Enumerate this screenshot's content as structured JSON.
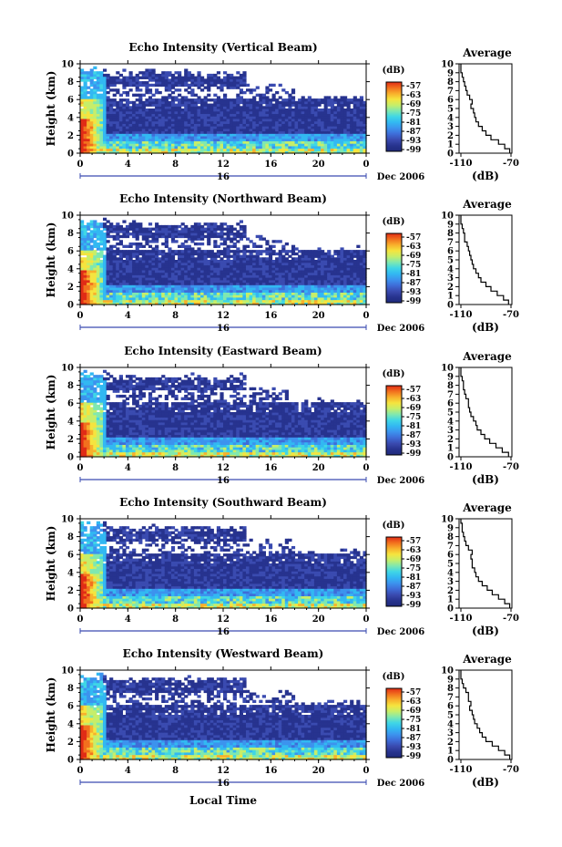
{
  "chart_data": [
    {
      "type": "heatmap",
      "title": "Echo Intensity (Vertical Beam)",
      "ylabel": "Height (km)",
      "xlim": [
        0,
        24
      ],
      "ylim": [
        0,
        10
      ],
      "x_ticks": [
        "0",
        "4",
        "8",
        "12",
        "16",
        "20",
        "0"
      ],
      "y_ticks": [
        "0",
        "2",
        "4",
        "6",
        "8",
        "10"
      ],
      "day_label": "16",
      "date_label": "Dec 2006",
      "colorbar": {
        "unit": "(dB)",
        "ticks": [
          "-57",
          "-63",
          "-69",
          "-75",
          "-81",
          "-87",
          "-93",
          "-99"
        ]
      },
      "average_profile": {
        "title": "Average",
        "xlabel": "(dB)",
        "x_ticks": [
          "-110",
          "-70"
        ],
        "xlim": [
          -112,
          -68
        ],
        "height_km": [
          0.0,
          0.5,
          1.0,
          1.5,
          2.0,
          2.5,
          3.0,
          3.5,
          4.0,
          4.5,
          5.0,
          5.5,
          6.0,
          6.5,
          7.0,
          7.5,
          8.0,
          8.5,
          9.0,
          9.5,
          10.0
        ],
        "intensity_db": [
          -71,
          -75,
          -80,
          -86,
          -90,
          -93,
          -96,
          -98,
          -99,
          -100,
          -102,
          -101,
          -103,
          -105,
          -106,
          -107,
          -108,
          -109,
          -110,
          -110,
          -110
        ]
      }
    },
    {
      "type": "heatmap",
      "title": "Echo Intensity (Northward Beam)",
      "ylabel": "Height (km)",
      "xlim": [
        0,
        24
      ],
      "ylim": [
        0,
        10
      ],
      "x_ticks": [
        "0",
        "4",
        "8",
        "12",
        "16",
        "20",
        "0"
      ],
      "y_ticks": [
        "0",
        "2",
        "4",
        "6",
        "8",
        "10"
      ],
      "day_label": "16",
      "date_label": "Dec 2006",
      "colorbar": {
        "unit": "(dB)",
        "ticks": [
          "-57",
          "-63",
          "-69",
          "-75",
          "-81",
          "-87",
          "-93",
          "-99"
        ]
      },
      "average_profile": {
        "title": "Average",
        "xlabel": "(dB)",
        "x_ticks": [
          "-110",
          "-70"
        ],
        "xlim": [
          -112,
          -68
        ],
        "height_km": [
          0.0,
          0.5,
          1.0,
          1.5,
          2.0,
          2.5,
          3.0,
          3.5,
          4.0,
          4.5,
          5.0,
          5.5,
          6.0,
          6.5,
          7.0,
          7.5,
          8.0,
          8.5,
          9.0,
          9.5,
          10.0
        ],
        "intensity_db": [
          -72,
          -76,
          -81,
          -86,
          -90,
          -94,
          -96,
          -98,
          -100,
          -101,
          -102,
          -103,
          -104,
          -105,
          -107,
          -107,
          -108,
          -109,
          -110,
          -110,
          -110
        ]
      }
    },
    {
      "type": "heatmap",
      "title": "Echo Intensity (Eastward Beam)",
      "ylabel": "Height (km)",
      "xlim": [
        0,
        24
      ],
      "ylim": [
        0,
        10
      ],
      "x_ticks": [
        "0",
        "4",
        "8",
        "12",
        "16",
        "20",
        "0"
      ],
      "y_ticks": [
        "0",
        "2",
        "4",
        "6",
        "8",
        "10"
      ],
      "day_label": "16",
      "date_label": "Dec 2006",
      "colorbar": {
        "unit": "(dB)",
        "ticks": [
          "-57",
          "-63",
          "-69",
          "-75",
          "-81",
          "-87",
          "-93",
          "-99"
        ]
      },
      "average_profile": {
        "title": "Average",
        "xlabel": "(dB)",
        "x_ticks": [
          "-110",
          "-70"
        ],
        "xlim": [
          -112,
          -68
        ],
        "height_km": [
          0.0,
          0.5,
          1.0,
          1.5,
          2.0,
          2.5,
          3.0,
          3.5,
          4.0,
          4.5,
          5.0,
          5.5,
          6.0,
          6.5,
          7.0,
          7.5,
          8.0,
          8.5,
          9.0,
          9.5,
          10.0
        ],
        "intensity_db": [
          -72,
          -77,
          -82,
          -87,
          -91,
          -94,
          -97,
          -98,
          -100,
          -102,
          -103,
          -104,
          -104,
          -106,
          -107,
          -108,
          -108,
          -109,
          -110,
          -110,
          -110
        ]
      }
    },
    {
      "type": "heatmap",
      "title": "Echo Intensity (Southward Beam)",
      "ylabel": "Height (km)",
      "xlim": [
        0,
        24
      ],
      "ylim": [
        0,
        10
      ],
      "x_ticks": [
        "0",
        "4",
        "8",
        "12",
        "16",
        "20",
        "0"
      ],
      "y_ticks": [
        "0",
        "2",
        "4",
        "6",
        "8",
        "10"
      ],
      "day_label": "16",
      "date_label": "Dec 2006",
      "colorbar": {
        "unit": "(dB)",
        "ticks": [
          "-57",
          "-63",
          "-69",
          "-75",
          "-81",
          "-87",
          "-93",
          "-99"
        ]
      },
      "average_profile": {
        "title": "Average",
        "xlabel": "(dB)",
        "x_ticks": [
          "-110",
          "-70"
        ],
        "xlim": [
          -112,
          -68
        ],
        "height_km": [
          0.0,
          0.5,
          1.0,
          1.5,
          2.0,
          2.5,
          3.0,
          3.5,
          4.0,
          4.5,
          5.0,
          5.5,
          6.0,
          6.5,
          7.0,
          7.5,
          8.0,
          8.5,
          9.0,
          9.5,
          10.0
        ],
        "intensity_db": [
          -71,
          -75,
          -80,
          -85,
          -89,
          -93,
          -96,
          -98,
          -99,
          -101,
          -101,
          -102,
          -101,
          -104,
          -106,
          -107,
          -108,
          -109,
          -109,
          -110,
          -110
        ]
      }
    },
    {
      "type": "heatmap",
      "title": "Echo Intensity (Westward Beam)",
      "ylabel": "Height (km)",
      "xlabel": "Local Time",
      "xlim": [
        0,
        24
      ],
      "ylim": [
        0,
        10
      ],
      "x_ticks": [
        "0",
        "4",
        "8",
        "12",
        "16",
        "20",
        "0"
      ],
      "y_ticks": [
        "0",
        "2",
        "4",
        "6",
        "8",
        "10"
      ],
      "day_label": "16",
      "date_label": "Dec 2006",
      "colorbar": {
        "unit": "(dB)",
        "ticks": [
          "-57",
          "-63",
          "-69",
          "-75",
          "-81",
          "-87",
          "-93",
          "-99"
        ]
      },
      "average_profile": {
        "title": "Average",
        "xlabel": "(dB)",
        "x_ticks": [
          "-110",
          "-70"
        ],
        "xlim": [
          -112,
          -68
        ],
        "height_km": [
          0.0,
          0.5,
          1.0,
          1.5,
          2.0,
          2.5,
          3.0,
          3.5,
          4.0,
          4.5,
          5.0,
          5.5,
          6.0,
          6.5,
          7.0,
          7.5,
          8.0,
          8.5,
          9.0,
          9.5,
          10.0
        ],
        "intensity_db": [
          -71,
          -75,
          -80,
          -85,
          -90,
          -93,
          -95,
          -97,
          -99,
          -100,
          -101,
          -103,
          -102,
          -104,
          -104,
          -106,
          -108,
          -109,
          -110,
          -110,
          -110
        ]
      }
    }
  ],
  "colorscale": [
    "#1f2a7a",
    "#27338f",
    "#3a4bb0",
    "#3e6dd8",
    "#3c93ee",
    "#32b8f2",
    "#3fd6e6",
    "#7fe8b0",
    "#c6ee6a",
    "#f5e43f",
    "#f8b02c",
    "#f2701e",
    "#e02c16"
  ]
}
